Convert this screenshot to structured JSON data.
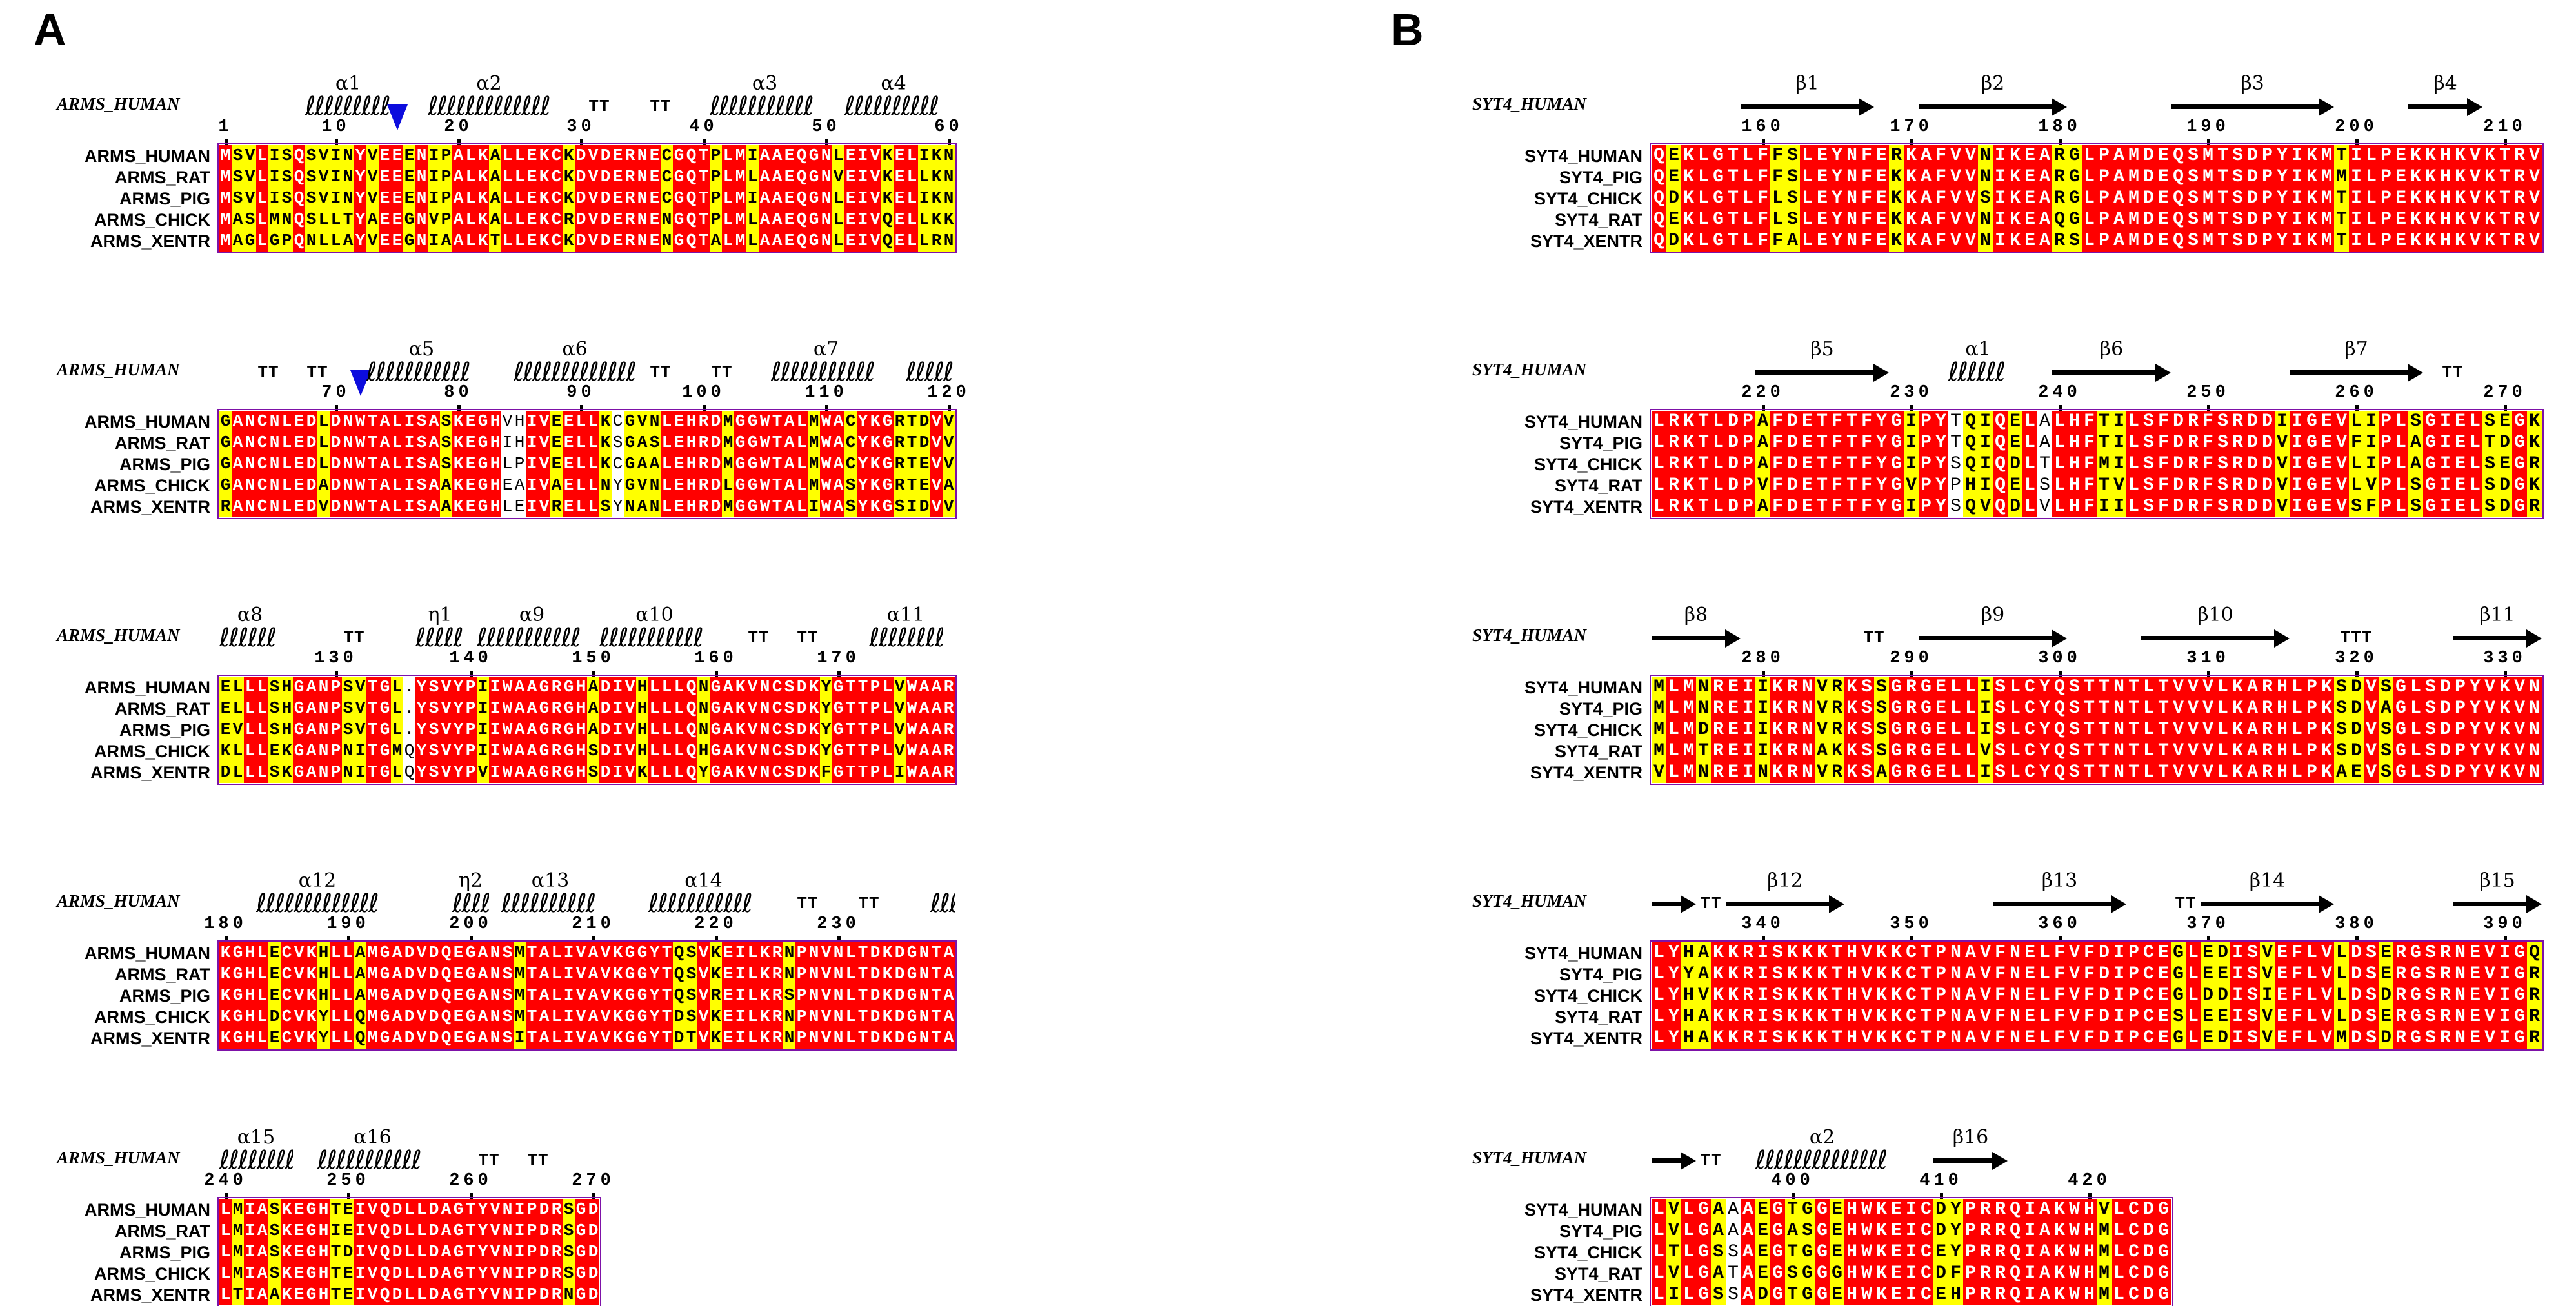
{
  "figure": {
    "type": "multiple-sequence-alignment",
    "style": "ESPript"
  },
  "colors": {
    "identical_bg": "#ff0000",
    "identical_fg": "#ffffff",
    "similar_bg": "#ffff00",
    "similar_fg": "#000000",
    "variable_fg": "#000000",
    "frame": "#7d12a8",
    "marker_triangle": "#0c0cdd",
    "structure": "#000000",
    "background": "#ffffff"
  },
  "panels": [
    {
      "letter": "A",
      "ref_label": "ARMS_HUMAN",
      "row_labels": [
        "ARMS_HUMAN",
        "ARMS_RAT",
        "ARMS_PIG",
        "ARMS_CHICK",
        "ARMS_XENTR"
      ],
      "blocks": [
        {
          "ruler": [
            [
              1,
              "1"
            ],
            [
              10,
              "10"
            ],
            [
              20,
              "20"
            ],
            [
              30,
              "30"
            ],
            [
              40,
              "40"
            ],
            [
              50,
              "50"
            ],
            [
              60,
              "60"
            ]
          ],
          "ss": [
            {
              "t": "helix",
              "f": 8,
              "e": 14,
              "l": "α1"
            },
            {
              "t": "tri",
              "f": 15
            },
            {
              "t": "helix",
              "f": 18,
              "e": 27,
              "l": "α2"
            },
            {
              "t": "turn",
              "f": 31,
              "e": 32,
              "l": "TT"
            },
            {
              "t": "turn",
              "f": 36,
              "e": 37,
              "l": "TT"
            },
            {
              "t": "helix",
              "f": 41,
              "e": 49,
              "l": "α3"
            },
            {
              "t": "helix",
              "f": 52,
              "e": 59,
              "l": "α4"
            }
          ],
          "white_cols": [],
          "rows": [
            "MSVLISQSVINYVEEENIPALKALLEKCKDVDERNECGQTPLMIAAEQGNLEIVKELIKN",
            "MSVLISQSVINYVEEENIPALKALLEKCKDVDERNECGQTPLMLAAEQGNVEIVKELLKN",
            "MSVLISQSVINYVEEENIPALKALLEKCKDVDERNECGQTPLMIAAEQGNLEIVKELIKN",
            "MASLMNQSLLTYAEEGNVPALKALLEKCRDVDERNENGQTPLMLAAEQGNLEIVQELLKK",
            "MAGLGPQNLLAYVEEGNIAALKTLLEKCKDVDERNENGQTALMLAAEQGNLEIVQELLRN"
          ]
        },
        {
          "ruler": [
            [
              10,
              "70"
            ],
            [
              20,
              "80"
            ],
            [
              30,
              "90"
            ],
            [
              40,
              "100"
            ],
            [
              50,
              "110"
            ],
            [
              60,
              "120"
            ]
          ],
          "ss": [
            {
              "t": "turn",
              "f": 4,
              "e": 5,
              "l": "TT"
            },
            {
              "t": "turn",
              "f": 8,
              "e": 9,
              "l": "TT"
            },
            {
              "t": "tri",
              "f": 12
            },
            {
              "t": "helix",
              "f": 13,
              "e": 21,
              "l": "α5"
            },
            {
              "t": "helix",
              "f": 25,
              "e": 34,
              "l": "α6"
            },
            {
              "t": "turn",
              "f": 36,
              "e": 37,
              "l": "TT"
            },
            {
              "t": "turn",
              "f": 41,
              "e": 42,
              "l": "TT"
            },
            {
              "t": "helix",
              "f": 46,
              "e": 54,
              "l": "α7"
            },
            {
              "t": "helix",
              "f": 57,
              "e": 60,
              "l": ""
            }
          ],
          "white_cols": [
            24
          ],
          "rows": [
            "GANCNLEDLDNWTALISASKEGHVHIVEELLKCGVNLEHRDMGGWTALMWACYKGRTDVV",
            "GANCNLEDLDNWTALISASKEGHIHIVEELLKSGASLEHRDMGGWTALMWACYKGRTDVV",
            "GANCNLEDLDNWTALISASKEGHLPIVEELLKCGAALEHRDMGGWTALMWACYKGRTEVV",
            "GANCNLEDADNWTALISAAKEGHEAIVAELLNYGVNLEHRDLGGWTALMWASYKGRTEVA",
            "RANCNLEDVDNWTALISAAKEGHLEIVRELLSYNANLEHRDMGGWTALIWASYKGSIDVV"
          ]
        },
        {
          "ruler": [
            [
              10,
              "130"
            ],
            [
              21,
              "140"
            ],
            [
              31,
              "150"
            ],
            [
              41,
              "160"
            ],
            [
              51,
              "170"
            ]
          ],
          "ss": [
            {
              "t": "helix",
              "f": 1,
              "e": 5,
              "l": "α8"
            },
            {
              "t": "turn",
              "f": 11,
              "e": 12,
              "l": "TT"
            },
            {
              "t": "helix",
              "f": 17,
              "e": 20,
              "l": "η1"
            },
            {
              "t": "helix",
              "f": 22,
              "e": 30,
              "l": "α9"
            },
            {
              "t": "helix",
              "f": 32,
              "e": 40,
              "l": "α10"
            },
            {
              "t": "turn",
              "f": 44,
              "e": 45,
              "l": "TT"
            },
            {
              "t": "turn",
              "f": 48,
              "e": 49,
              "l": "TT"
            },
            {
              "t": "helix",
              "f": 54,
              "e": 59,
              "l": "α11"
            }
          ],
          "white_cols": [],
          "rows": [
            "ELLLSHGANPSVTGL.YSVYPIIWAAGRGHADIVHLLLQNGAKVNCSDKYGTTPLVWAAR",
            "ELLLSHGANPSVTGL.YSVYPIIWAAGRGHADIVHLLLQNGAKVNCSDKYGTTPLVWAAR",
            "EVLLSHGANPSVTGL.YSVYPIIWAAGRGHADIVHLLLQNGAKVNCSDKYGTTPLVWAAR",
            "KLLLEKGANPNITGMQYSVYPIIWAAGRGHSDIVHLLLQHGAKVNCSDKYGTTPLVWAAR",
            "DLLLSKGANPNITGLQYSVYPVIWAAGRGHSDIVKLLLQYGAKVNCSDKFGTTPLIWAAR"
          ]
        },
        {
          "ruler": [
            [
              1,
              "180"
            ],
            [
              11,
              "190"
            ],
            [
              21,
              "200"
            ],
            [
              31,
              "210"
            ],
            [
              41,
              "220"
            ],
            [
              51,
              "230"
            ]
          ],
          "ss": [
            {
              "t": "helix",
              "f": 4,
              "e": 13,
              "l": "α12"
            },
            {
              "t": "helix",
              "f": 20,
              "e": 22,
              "l": "η2"
            },
            {
              "t": "helix",
              "f": 24,
              "e": 31,
              "l": "α13"
            },
            {
              "t": "helix",
              "f": 36,
              "e": 44,
              "l": "α14"
            },
            {
              "t": "turn",
              "f": 48,
              "e": 49,
              "l": "TT"
            },
            {
              "t": "turn",
              "f": 53,
              "e": 54,
              "l": "TT"
            },
            {
              "t": "helix",
              "f": 59,
              "e": 60,
              "l": ""
            }
          ],
          "white_cols": [],
          "rows": [
            "KGHLECVKHLLAMGADVDQEGANSMTALIVAVKGGYTQSVKEILKRNPNVNLTDKDGNTA",
            "KGHLECVKHLLAMGADVDQEGANSMTALIVAVKGGYTQSVKEILKRNPNVNLTDKDGNTA",
            "KGHLECVKHLLAMGADVDQEGANSMTALIVAVKGGYTQSVREILKRSPNVNLTDKDGNTA",
            "KGHLDCVKYLLQMGADVDQEGANSMTALIVAVKGGYTDSVKEILKRNPNVNLTDKDGNTA",
            "KGHLECVKYLLQMGADVDQEGANSITALIVAVKGGYTDTVKEILKRNPNVNLTDKDGNTA"
          ]
        },
        {
          "ruler": [
            [
              1,
              "240"
            ],
            [
              11,
              "250"
            ],
            [
              21,
              "260"
            ],
            [
              31,
              "270"
            ]
          ],
          "ss": [
            {
              "t": "helix",
              "f": 1,
              "e": 6,
              "l": "α15"
            },
            {
              "t": "helix",
              "f": 9,
              "e": 17,
              "l": "α16"
            },
            {
              "t": "turn",
              "f": 22,
              "e": 23,
              "l": "TT"
            },
            {
              "t": "turn",
              "f": 26,
              "e": 27,
              "l": "TT"
            }
          ],
          "white_cols": [],
          "rows": [
            "LMIASKEGHTEIVQDLLDAGTYVNIPDRSGD",
            "LMIASKEGHIEIVQDLLDAGTYVNIPDRSGD",
            "LMIASKEGHTDIVQDLLDAGTYVNIPDRSGD",
            "LMIASKEGHTEIVQDLLDAGTYVNIPDRSGD",
            "LTIAAKEGHTEIVQDLLDAGTYVNIPDRNGD"
          ]
        }
      ]
    },
    {
      "letter": "B",
      "ref_label": "SYT4_HUMAN",
      "row_labels": [
        "SYT4_HUMAN",
        "SYT4_PIG",
        "SYT4_CHICK",
        "SYT4_RAT",
        "SYT4_XENTR"
      ],
      "blocks": [
        {
          "ruler": [
            [
              8,
              "160"
            ],
            [
              18,
              "170"
            ],
            [
              28,
              "180"
            ],
            [
              38,
              "190"
            ],
            [
              48,
              "200"
            ],
            [
              58,
              "210"
            ]
          ],
          "ss": [
            {
              "t": "strand",
              "f": 7,
              "e": 15,
              "l": "β1"
            },
            {
              "t": "strand",
              "f": 19,
              "e": 28,
              "l": "β2"
            },
            {
              "t": "strand",
              "f": 36,
              "e": 46,
              "l": "β3"
            },
            {
              "t": "strand",
              "f": 52,
              "e": 56,
              "l": "β4"
            }
          ],
          "white_cols": [],
          "rows": [
            "QEKLGTLFFSLEYNFERKAFVVNIKEARGLPAMDEQSMTSDPYIKMTILPEKKHKVKTRV",
            "QEKLGTLFFSLEYNFEKKAFVVNIKEARGLPAMDEQSMTSDPYIKMMILPEKKHKVKTRV",
            "QDKLGTLFLSLEYNFEKKAFVVSIKEARGLPAMDEQSMTSDPYIKMTILPEKKHKVKTRV",
            "QEKLGTLFLSLEYNFEKKAFVVNIKEAQGLPAMDEQSMTSDPYIKMTILPEKKHKVKTRV",
            "QDKLGTLFFALEYNFEKKAFVVNIKEARSLPAMDEQSMTSDPYIKMTILPEKKHKVKTRV"
          ]
        },
        {
          "ruler": [
            [
              8,
              "220"
            ],
            [
              18,
              "230"
            ],
            [
              28,
              "240"
            ],
            [
              38,
              "250"
            ],
            [
              48,
              "260"
            ],
            [
              58,
              "270"
            ]
          ],
          "ss": [
            {
              "t": "strand",
              "f": 8,
              "e": 16,
              "l": "β5"
            },
            {
              "t": "helix",
              "f": 21,
              "e": 24,
              "l": "α1"
            },
            {
              "t": "strand",
              "f": 28,
              "e": 35,
              "l": "β6"
            },
            {
              "t": "strand",
              "f": 44,
              "e": 52,
              "l": "β7"
            },
            {
              "t": "turn",
              "f": 54,
              "e": 55,
              "l": "TT"
            }
          ],
          "white_cols": [
            21
          ],
          "rows": [
            "LRKTLDPAFDETFTFYGIPYTQIQELALHFTILSFDRFSRDDIIGEVLIPLSGIELSEGK",
            "LRKTLDPAFDETFTFYGIPYTQIQELALHFTILSFDRFSRDDVIGEVFIPLAGIELTDGK",
            "LRKTLDPAFDETFTFYGIPYSQIQDLTLHFMILSFDRFSRDDVIGEVLIPLAGIELSEGR",
            "LRKTLDPVFDETFTFYGVPYPHIQELSLHFTVLSFDRFSRDDVIGEVLVPLSGIELSDGK",
            "LRKTLDPAFDETFTFYGIPYSQVQDLVLHFIILSFDRFSRDDVIGEVSFPLSGIELSDGR"
          ]
        },
        {
          "ruler": [
            [
              8,
              "280"
            ],
            [
              18,
              "290"
            ],
            [
              28,
              "300"
            ],
            [
              38,
              "310"
            ],
            [
              48,
              "320"
            ],
            [
              58,
              "330"
            ]
          ],
          "ss": [
            {
              "t": "strand",
              "f": 1,
              "e": 6,
              "l": "β8"
            },
            {
              "t": "turn",
              "f": 15,
              "e": 16,
              "l": "TT"
            },
            {
              "t": "strand",
              "f": 19,
              "e": 28,
              "l": "β9"
            },
            {
              "t": "strand",
              "f": 34,
              "e": 43,
              "l": "β10"
            },
            {
              "t": "turn",
              "f": 47,
              "e": 49,
              "l": "TTT"
            },
            {
              "t": "strand",
              "f": 55,
              "e": 60,
              "l": "β11"
            }
          ],
          "white_cols": [],
          "rows": [
            "MLMNREIIKRNVRKSSGRGELLISLCYQSTTNTLTVVVLKARHLPKSDVSGLSDPYVKVN",
            "MLMNREIIKRNVRKSSGRGELLISLCYQSTTNTLTVVVLKARHLPKSDVAGLSDPYVKVN",
            "MLMDREIIKRNVRKSSGRGELLISLCYQSTTNTLTVVVLKARHLPKSDVSGLSDPYVKVN",
            "MLMTREIIKRNAKKSSGRGELLVSLCYQSTTNTLTVVVLKARHLPKSDVSGLSDPYVKVN",
            "VLMNREINKRNVRKSAGRGELLISLCYQSTTNTLTVVVLKARHLPKAEVSGLSDPYVKVN"
          ]
        },
        {
          "ruler": [
            [
              8,
              "340"
            ],
            [
              18,
              "350"
            ],
            [
              28,
              "360"
            ],
            [
              38,
              "370"
            ],
            [
              48,
              "380"
            ],
            [
              58,
              "390"
            ]
          ],
          "ss": [
            {
              "t": "strand",
              "f": 1,
              "e": 3,
              "l": ""
            },
            {
              "t": "turn",
              "f": 4,
              "e": 5,
              "l": "TT"
            },
            {
              "t": "strand",
              "f": 6,
              "e": 13,
              "l": "β12"
            },
            {
              "t": "strand",
              "f": 24,
              "e": 32,
              "l": "β13"
            },
            {
              "t": "turn",
              "f": 36,
              "e": 37,
              "l": "TT"
            },
            {
              "t": "strand",
              "f": 38,
              "e": 46,
              "l": "β14"
            },
            {
              "t": "strand",
              "f": 55,
              "e": 60,
              "l": "β15"
            }
          ],
          "white_cols": [],
          "rows": [
            "LYHAKKRISKKKTHVKKCTPNAVFNELFVFDIPCEGLEDISVEFLVLDSERGSRNEVIGQ",
            "LYYAKKRISKKKTHVKKCTPNAVFNELFVFDIPCEGLEEISVEFLVLDSERGSRNEVIGR",
            "LYHVKKRISKKKTHVKKCTPNAVFNELFVFDIPCEGLDDISIEFLVLDSDRGSRNEVIGR",
            "LYHAKKRISKKKTHVKKCTPNAVFNELFVFDIPCESLEEISVEFLVLDSERGSRNEVIGR",
            "LYHAKKRISKKKTHVKKCTPNAVFNELFVFDIPCEGLEDISVEFLVMDSDRGSRNEVIGR"
          ]
        },
        {
          "ruler": [
            [
              10,
              "400"
            ],
            [
              20,
              "410"
            ],
            [
              30,
              "420"
            ]
          ],
          "ss": [
            {
              "t": "strand",
              "f": 1,
              "e": 3,
              "l": ""
            },
            {
              "t": "turn",
              "f": 4,
              "e": 5,
              "l": "TT"
            },
            {
              "t": "helix",
              "f": 8,
              "e": 16,
              "l": "α2"
            },
            {
              "t": "strand",
              "f": 20,
              "e": 24,
              "l": "β16"
            }
          ],
          "white_cols": [
            6
          ],
          "rows": [
            "LVLGAAAEGTGGEHWKEICDYPRRQIAKWHVLCDG",
            "LVLGAAAEGASGEHWKEICDYPRRQIAKWHMLCDG",
            "LTLGSSAEGTGGEHWKEICEYPRRQIAKWHMLCDG",
            "LVLGATAEGSGGGHWKEICDFPRRQIAKWHMLCDG",
            "LILGSSADGTGGEHWKEICEHPRRQIAKWHMLCDG"
          ]
        }
      ]
    }
  ]
}
